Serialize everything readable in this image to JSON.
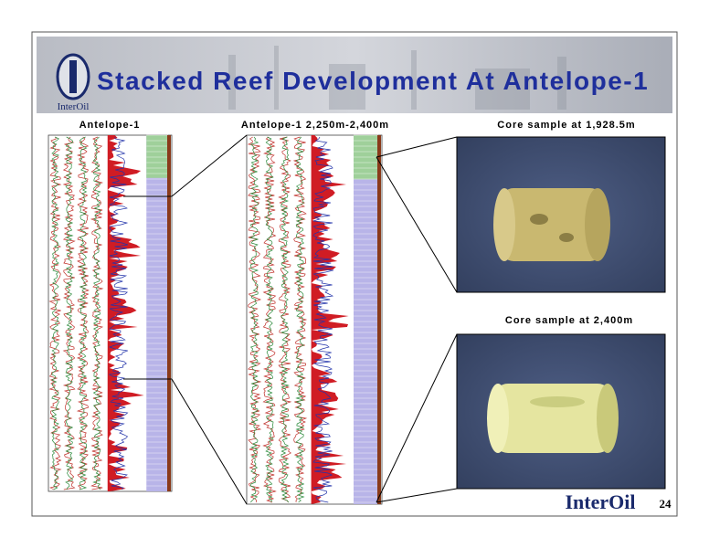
{
  "header": {
    "logo": "InterOil",
    "title": "Stacked Reef Development At Antelope-1"
  },
  "panels": [
    {
      "label": "Antelope-1"
    },
    {
      "label": "Antelope-1 2,250m-2,400m"
    },
    {
      "label": "Core sample at 1,928.5m"
    },
    {
      "label": "Core sample at 2,400m"
    }
  ],
  "footer": {
    "logo": "InterOil",
    "page": "24"
  }
}
